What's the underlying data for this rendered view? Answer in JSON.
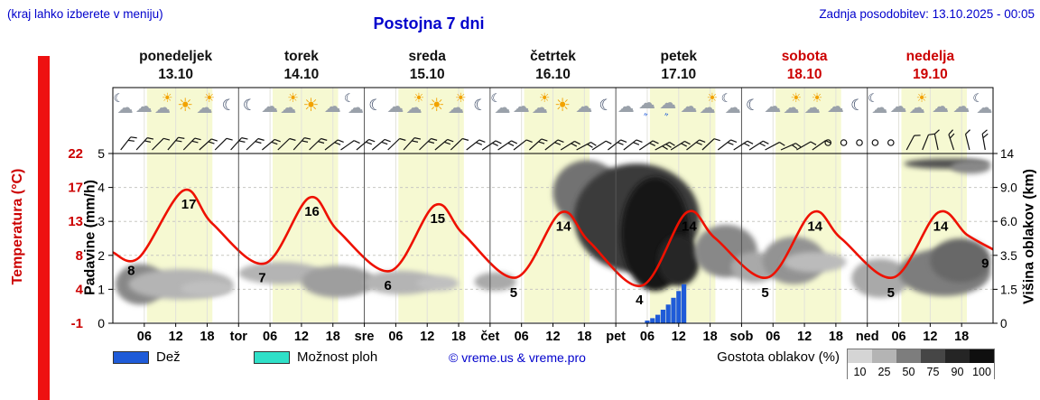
{
  "header": {
    "hint": "(kraj lahko izberete v meniju)",
    "title": "Postojna 7 dni",
    "updated": "Zadnja posodobitev: 13.10.2025 - 00:05"
  },
  "axes": {
    "temp_title": "Temperatura (°C)",
    "precip_title": "Padavine (mm/h)",
    "cloud_title": "Višina oblakov (km)",
    "temp_ticks": [
      "22",
      "17",
      "13",
      "8",
      "4",
      "-1"
    ],
    "precip_ticks": [
      "5",
      "4",
      "3",
      "2",
      "1",
      "0"
    ],
    "cloud_ticks": [
      "14",
      "9.0",
      "6.0",
      "3.5",
      "1.5",
      "0"
    ]
  },
  "legend": {
    "rain": "Dež",
    "showers": "Možnost ploh",
    "copyright": "© vreme.us & vreme.pro",
    "density_title": "Gostota oblakov (%)",
    "densities": [
      10,
      25,
      50,
      75,
      90,
      100
    ]
  },
  "colors": {
    "link_blue": "#0000cc",
    "red": "#cc0000",
    "temp_line": "#ee1100",
    "rain": "#1f5bd8",
    "shower": "#2fe0c8",
    "daylight_band": "#f6f9d2",
    "temp_strip": "#ee1111"
  },
  "chart_data": {
    "type": "line",
    "title": "Postojna 7 dni",
    "x_axis": "hours Mon 13.10 00:00 - Sun 19.10 24:00",
    "y_left_precip_mm_h": [
      0,
      5
    ],
    "y_left_temp_c": [
      -1,
      22
    ],
    "y_right_cloud_km": [
      "0",
      "1.5",
      "3.5",
      "6.0",
      "9.0",
      "14"
    ],
    "days": [
      {
        "name": "ponedeljek",
        "date": "13.10",
        "red": false
      },
      {
        "name": "torek",
        "date": "14.10",
        "red": false
      },
      {
        "name": "sreda",
        "date": "15.10",
        "red": false
      },
      {
        "name": "četrtek",
        "date": "16.10",
        "red": false
      },
      {
        "name": "petek",
        "date": "17.10",
        "red": false
      },
      {
        "name": "sobota",
        "date": "18.10",
        "red": true
      },
      {
        "name": "nedelja",
        "date": "19.10",
        "red": true
      }
    ],
    "daylight": {
      "start_h": 6.5,
      "end_h": 19
    },
    "x_ticks": [
      {
        "h": 6,
        "l": "06"
      },
      {
        "h": 12,
        "l": "12"
      },
      {
        "h": 18,
        "l": "18"
      },
      {
        "h": 24,
        "l": "tor"
      },
      {
        "h": 30,
        "l": "06"
      },
      {
        "h": 36,
        "l": "12"
      },
      {
        "h": 42,
        "l": "18"
      },
      {
        "h": 48,
        "l": "sre"
      },
      {
        "h": 54,
        "l": "06"
      },
      {
        "h": 60,
        "l": "12"
      },
      {
        "h": 66,
        "l": "18"
      },
      {
        "h": 72,
        "l": "čet"
      },
      {
        "h": 78,
        "l": "06"
      },
      {
        "h": 84,
        "l": "12"
      },
      {
        "h": 90,
        "l": "18"
      },
      {
        "h": 96,
        "l": "pet"
      },
      {
        "h": 102,
        "l": "06"
      },
      {
        "h": 108,
        "l": "12"
      },
      {
        "h": 114,
        "l": "18"
      },
      {
        "h": 120,
        "l": "sob"
      },
      {
        "h": 126,
        "l": "06"
      },
      {
        "h": 132,
        "l": "12"
      },
      {
        "h": 138,
        "l": "18"
      },
      {
        "h": 144,
        "l": "ned"
      },
      {
        "h": 150,
        "l": "06"
      },
      {
        "h": 156,
        "l": "12"
      },
      {
        "h": 162,
        "l": "18"
      }
    ],
    "temperature_points": [
      [
        0,
        8.6
      ],
      [
        5,
        7.9
      ],
      [
        13.5,
        17
      ],
      [
        19,
        12.5
      ],
      [
        29,
        7.1
      ],
      [
        37.5,
        16
      ],
      [
        43,
        11.5
      ],
      [
        53,
        6.1
      ],
      [
        61.5,
        15
      ],
      [
        67,
        11
      ],
      [
        77,
        5.2
      ],
      [
        85.5,
        14
      ],
      [
        91,
        10
      ],
      [
        101,
        4.1
      ],
      [
        109.5,
        14
      ],
      [
        115,
        10.5
      ],
      [
        125,
        5.2
      ],
      [
        133.5,
        14
      ],
      [
        139,
        10.5
      ],
      [
        149,
        5.2
      ],
      [
        157.5,
        14
      ],
      [
        163,
        11
      ],
      [
        168,
        9
      ]
    ],
    "temperature_labels": [
      {
        "h": 14.5,
        "v": 17
      },
      {
        "h": 38,
        "v": 16
      },
      {
        "h": 62,
        "v": 15
      },
      {
        "h": 86,
        "v": 14
      },
      {
        "h": 110,
        "v": 14
      },
      {
        "h": 134,
        "v": 14
      },
      {
        "h": 158,
        "v": 14
      },
      {
        "h": 3.5,
        "v": 8
      },
      {
        "h": 28.5,
        "v": 7
      },
      {
        "h": 52.5,
        "v": 6
      },
      {
        "h": 76.5,
        "v": 5
      },
      {
        "h": 100.5,
        "v": 4
      },
      {
        "h": 124.5,
        "v": 5
      },
      {
        "h": 148.5,
        "v": 5
      },
      {
        "h": 166.5,
        "v": 9
      }
    ],
    "rain_bars": {
      "start_h": 102,
      "step_h": 1,
      "unit": "mm/h",
      "values": [
        0.08,
        0.15,
        0.25,
        0.4,
        0.55,
        0.75,
        0.95,
        1.15
      ]
    },
    "cloud_blobs": [
      [
        0.5,
        10,
        1.75,
        0.55,
        45
      ],
      [
        3,
        23,
        1.6,
        0.7,
        25
      ],
      [
        13,
        23,
        1.25,
        0.8,
        20
      ],
      [
        24,
        40,
        1.8,
        1.15,
        25
      ],
      [
        36,
        50,
        1.7,
        0.75,
        35
      ],
      [
        48,
        62,
        1.55,
        0.85,
        25
      ],
      [
        58,
        66,
        1.4,
        0.95,
        20
      ],
      [
        69,
        77,
        1.5,
        0.95,
        30
      ],
      [
        84,
        97,
        4.8,
        2.9,
        55
      ],
      [
        88,
        112,
        4.7,
        1.5,
        80
      ],
      [
        97,
        110,
        4.3,
        0.95,
        98
      ],
      [
        104,
        112,
        2.6,
        1.1,
        90
      ],
      [
        111,
        123,
        2.9,
        1.35,
        45
      ],
      [
        118,
        127,
        2.1,
        1.2,
        30
      ],
      [
        124,
        136,
        2.55,
        1.15,
        40
      ],
      [
        128,
        140,
        2.1,
        1.5,
        22
      ],
      [
        141,
        152,
        1.9,
        0.75,
        30
      ],
      [
        150,
        167.5,
        2.2,
        0.8,
        50
      ],
      [
        156,
        167.5,
        2.5,
        1.2,
        60
      ],
      [
        151,
        167.5,
        4.85,
        4.55,
        70
      ],
      [
        160,
        167.5,
        4.8,
        4.4,
        45
      ]
    ],
    "icons": [
      [
        "moon-cloud",
        "cloud",
        "sun-cloud",
        "sun",
        "sun-cloud",
        "moon"
      ],
      [
        "moon",
        "cloud",
        "sun-cloud",
        "sun",
        "cloud",
        "moon-cloud"
      ],
      [
        "moon",
        "cloud",
        "sun-cloud",
        "sun",
        "sun-cloud",
        "moon"
      ],
      [
        "moon-cloud",
        "cloud",
        "sun-cloud",
        "sun",
        "cloud",
        "moon"
      ],
      [
        "cloud",
        "rain",
        "rain",
        "cloud",
        "sun-cloud",
        "moon-cloud"
      ],
      [
        "moon",
        "cloud",
        "sun-cloud",
        "sun-cloud",
        "cloud",
        "moon"
      ],
      [
        "moon-cloud",
        "cloud",
        "sun-cloud",
        "cloud",
        "cloud",
        "moon-cloud"
      ]
    ],
    "wind": [
      [
        38,
        2
      ],
      [
        42,
        2
      ],
      [
        45,
        1
      ],
      [
        40,
        2
      ],
      [
        44,
        2
      ],
      [
        48,
        2
      ],
      [
        45,
        1
      ],
      [
        42,
        2
      ],
      [
        46,
        2
      ],
      [
        50,
        2
      ],
      [
        46,
        1
      ],
      [
        42,
        2
      ],
      [
        46,
        2
      ],
      [
        52,
        2
      ],
      [
        55,
        1
      ],
      [
        50,
        2
      ],
      [
        50,
        2
      ],
      [
        46,
        1
      ],
      [
        42,
        2
      ],
      [
        46,
        2
      ],
      [
        50,
        2
      ],
      [
        46,
        1
      ],
      [
        52,
        2
      ],
      [
        56,
        2
      ],
      [
        56,
        2
      ],
      [
        52,
        1
      ],
      [
        48,
        2
      ],
      [
        52,
        2
      ],
      [
        58,
        2
      ],
      [
        62,
        2
      ],
      [
        57,
        1
      ],
      [
        52,
        2
      ],
      [
        52,
        2
      ],
      [
        56,
        2
      ],
      [
        62,
        3
      ],
      [
        58,
        2
      ],
      [
        52,
        2
      ],
      [
        47,
        1
      ],
      [
        52,
        2
      ],
      [
        57,
        2
      ],
      [
        57,
        2
      ],
      [
        62,
        1
      ],
      [
        66,
        2
      ],
      [
        60,
        1
      ],
      [
        55,
        1
      ],
      [
        0,
        0
      ],
      [
        0,
        0
      ],
      [
        0,
        0
      ],
      [
        0,
        0
      ],
      [
        0,
        0
      ],
      [
        28,
        1
      ],
      [
        22,
        1
      ],
      [
        -12,
        1
      ],
      [
        -18,
        2
      ],
      [
        -14,
        1
      ],
      [
        -10,
        2
      ]
    ]
  }
}
